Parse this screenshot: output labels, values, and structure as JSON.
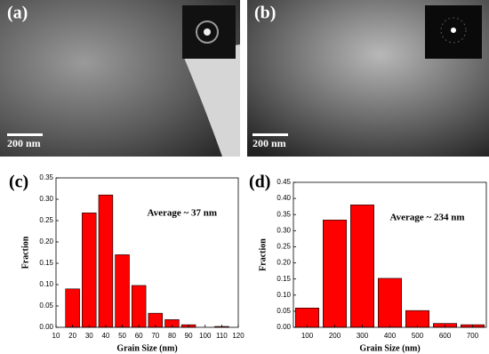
{
  "images": [
    {
      "label": "(a)",
      "scale_bar": "200 nm"
    },
    {
      "label": "(b)",
      "scale_bar": "200 nm"
    }
  ],
  "chart_data": [
    {
      "type": "bar",
      "label": "(c)",
      "annotation": "Average ~ 37 nm",
      "xlabel": "Grain Size (nm)",
      "ylabel": "Fraction",
      "color": "#ff0000",
      "x": [
        20,
        30,
        40,
        50,
        60,
        70,
        80,
        90,
        100,
        110
      ],
      "values": [
        0.09,
        0.268,
        0.31,
        0.17,
        0.098,
        0.033,
        0.018,
        0.006,
        0,
        0.002
      ],
      "xlim": [
        10,
        120
      ],
      "xticks": [
        10,
        20,
        30,
        40,
        50,
        60,
        70,
        80,
        90,
        100,
        110,
        120
      ],
      "ylim": [
        0,
        0.35
      ],
      "yticks": [
        {
          "value": 0,
          "label": "0.00"
        },
        {
          "value": 0.05,
          "label": "0.05"
        },
        {
          "value": 0.1,
          "label": "0.10"
        },
        {
          "value": 0.15,
          "label": "0.15"
        },
        {
          "value": 0.2,
          "label": "0.20"
        },
        {
          "value": 0.25,
          "label": "0.25"
        },
        {
          "value": 0.3,
          "label": "0.30"
        },
        {
          "value": 0.35,
          "label": "0.35"
        }
      ]
    },
    {
      "type": "bar",
      "label": "(d)",
      "annotation": "Average ~ 234 nm",
      "xlabel": "Grain Size (nm)",
      "ylabel": "Fraction",
      "color": "#ff0000",
      "x": [
        100,
        200,
        300,
        400,
        500,
        600,
        700
      ],
      "values": [
        0.06,
        0.333,
        0.38,
        0.152,
        0.052,
        0.012,
        0.008
      ],
      "xlim": [
        50,
        750
      ],
      "xticks": [
        100,
        200,
        300,
        400,
        500,
        600,
        700
      ],
      "ylim": [
        0,
        0.45
      ],
      "yticks": [
        {
          "value": 0,
          "label": "0.00"
        },
        {
          "value": 0.05,
          "label": "0.05"
        },
        {
          "value": 0.1,
          "label": "0.10"
        },
        {
          "value": 0.15,
          "label": "0.15"
        },
        {
          "value": 0.2,
          "label": "0.20"
        },
        {
          "value": 0.25,
          "label": "0.25"
        },
        {
          "value": 0.3,
          "label": "0.30"
        },
        {
          "value": 0.35,
          "label": "0.35"
        },
        {
          "value": 0.4,
          "label": "0.40"
        },
        {
          "value": 0.45,
          "label": "0.45"
        }
      ]
    }
  ]
}
